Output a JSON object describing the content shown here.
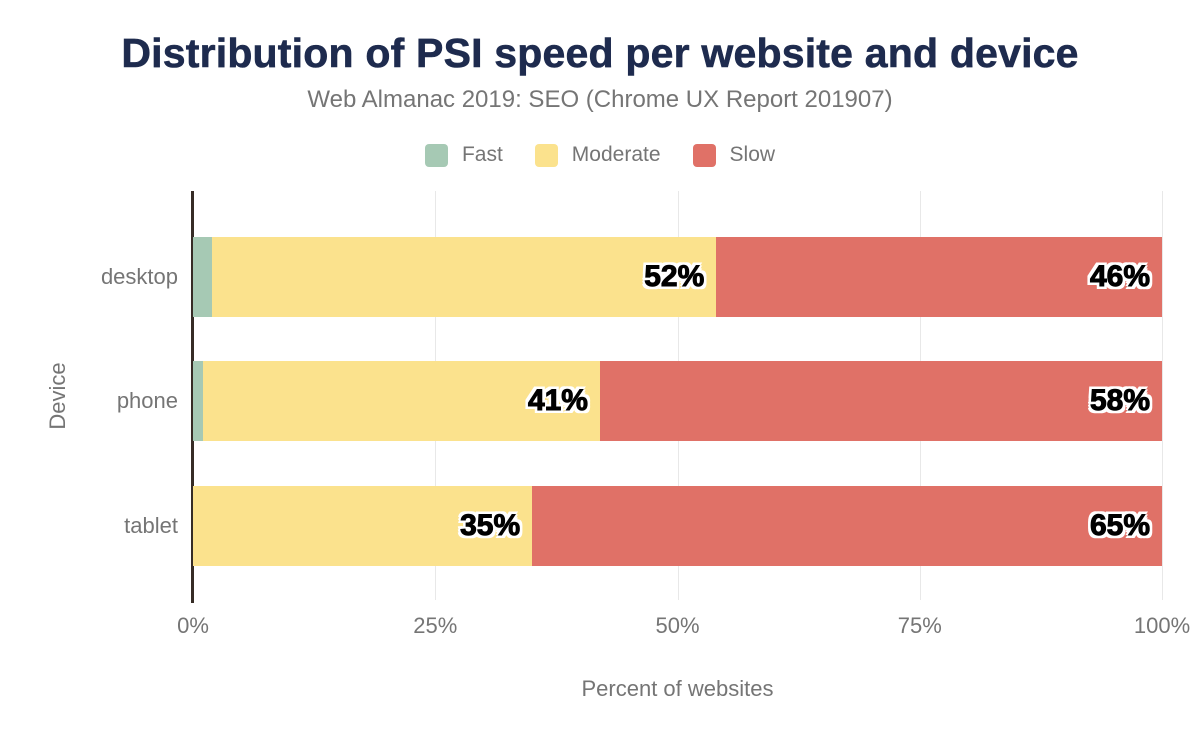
{
  "chart": {
    "title": "Distribution of PSI speed per website and device",
    "subtitle": "Web Almanac 2019: SEO (Chrome UX Report 201907)"
  },
  "colors": {
    "background": "#ffffff",
    "title": "#1e2b4e",
    "muted_text": "#757575",
    "axis_line": "#362c26",
    "gridline": "#e8e8e8",
    "label_text": "#000000",
    "label_halo": "#ffffff"
  },
  "chart_data": {
    "type": "bar",
    "orientation": "horizontal",
    "stacked": true,
    "title": "Distribution of PSI speed per website and device",
    "subtitle": "Web Almanac 2019: SEO (Chrome UX Report 201907)",
    "categories": [
      "desktop",
      "phone",
      "tablet"
    ],
    "series": [
      {
        "name": "Fast",
        "color": "#a6c9b4",
        "values": [
          2,
          1,
          0
        ]
      },
      {
        "name": "Moderate",
        "color": "#fbe28d",
        "values": [
          52,
          41,
          35
        ]
      },
      {
        "name": "Slow",
        "color": "#e07167",
        "values": [
          46,
          58,
          65
        ]
      }
    ],
    "value_label_format": "{value}%",
    "xlabel": "Percent of websites",
    "ylabel": "Device",
    "x_ticks": [
      "0%",
      "25%",
      "50%",
      "75%",
      "100%"
    ],
    "xlim": [
      0,
      100
    ],
    "grid": true,
    "legend_entries": [
      "Fast",
      "Moderate",
      "Slow"
    ],
    "legend_position": "top"
  }
}
